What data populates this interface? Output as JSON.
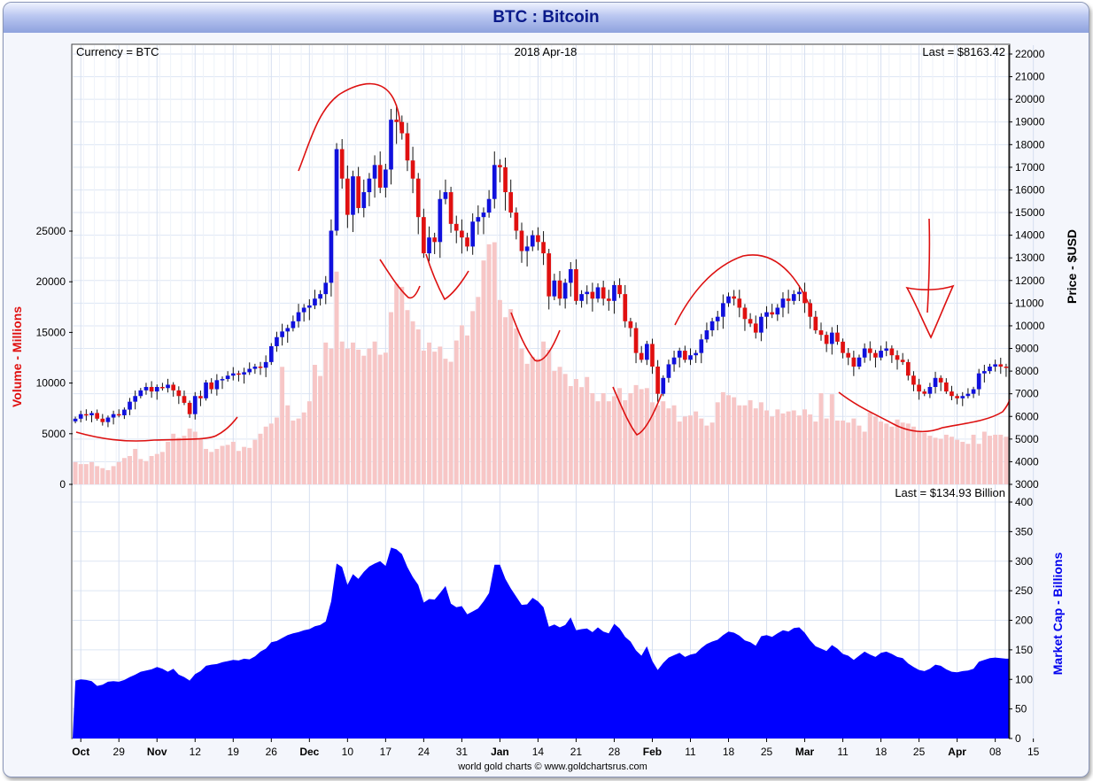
{
  "title": "BTC : Bitcoin",
  "colors": {
    "up": "#1010dd",
    "down": "#e01010",
    "volume": "#f7c6c6",
    "market_cap": "#0000ff",
    "volume_label": "#e01010",
    "market_cap_label": "#0000ee",
    "annotation": "#dd1111"
  },
  "chart_data": [
    {
      "type": "candlestick",
      "header_left": "Currency = BTC",
      "header_center": "2018 Apr-18",
      "header_right": "Last = $8163.42",
      "right_axis_label": "Price - $USD",
      "left_axis_label": "Volume - Millions",
      "price_ticks": [
        3000,
        4000,
        5000,
        6000,
        7000,
        8000,
        9000,
        10000,
        11000,
        12000,
        13000,
        14000,
        15000,
        16000,
        17000,
        18000,
        19000,
        20000,
        21000,
        22000
      ],
      "volume_ticks": [
        0,
        5000,
        10000,
        15000,
        20000,
        25000
      ],
      "x_tick_labels": [
        {
          "label": "Oct",
          "bold": true
        },
        {
          "label": "29",
          "bold": false
        },
        {
          "label": "Nov",
          "bold": true
        },
        {
          "label": "12",
          "bold": false
        },
        {
          "label": "19",
          "bold": false
        },
        {
          "label": "26",
          "bold": false
        },
        {
          "label": "Dec",
          "bold": true
        },
        {
          "label": "10",
          "bold": false
        },
        {
          "label": "17",
          "bold": false
        },
        {
          "label": "24",
          "bold": false
        },
        {
          "label": "31",
          "bold": false
        },
        {
          "label": "Jan",
          "bold": true
        },
        {
          "label": "14",
          "bold": false
        },
        {
          "label": "21",
          "bold": false
        },
        {
          "label": "28",
          "bold": false
        },
        {
          "label": "Feb",
          "bold": true
        },
        {
          "label": "11",
          "bold": false
        },
        {
          "label": "18",
          "bold": false
        },
        {
          "label": "25",
          "bold": false
        },
        {
          "label": "Mar",
          "bold": true
        },
        {
          "label": "11",
          "bold": false
        },
        {
          "label": "18",
          "bold": false
        },
        {
          "label": "25",
          "bold": false
        },
        {
          "label": "Apr",
          "bold": true
        },
        {
          "label": "08",
          "bold": false
        },
        {
          "label": "15",
          "bold": false
        }
      ],
      "x_tick_day_index": [
        1,
        8,
        15,
        22,
        29,
        36,
        43,
        50,
        57,
        64,
        71,
        78,
        85,
        92,
        99,
        106,
        113,
        120,
        127,
        134,
        141,
        148,
        155,
        162,
        169,
        176
      ],
      "price_close_series": [
        5900,
        6100,
        6050,
        6150,
        5900,
        5750,
        5950,
        6100,
        6050,
        6300,
        6650,
        6900,
        7150,
        7300,
        7100,
        7300,
        7250,
        7400,
        7150,
        6900,
        6600,
        6100,
        6900,
        6800,
        7500,
        7200,
        7600,
        7650,
        7800,
        7900,
        7850,
        7950,
        8100,
        8200,
        8150,
        8400,
        9100,
        9500,
        9750,
        9900,
        10200,
        10600,
        10800,
        10900,
        11200,
        11400,
        11900,
        14200,
        17800,
        16500,
        14900,
        16600,
        15200,
        15900,
        16500,
        17100,
        16100,
        16900,
        19100,
        19000,
        18500,
        17300,
        16500,
        14800,
        13200,
        13900,
        13700,
        15600,
        15900,
        14500,
        14200,
        13900,
        13500,
        14600,
        14800,
        15000,
        15600,
        17100,
        17000,
        15900,
        15000,
        14200,
        13300,
        13500,
        14000,
        13700,
        13200,
        11300,
        12000,
        11200,
        11900,
        12500,
        11100,
        11400,
        11500,
        11200,
        11700,
        11200,
        11100,
        11800,
        11400,
        10200,
        9900,
        8800,
        8500,
        9200,
        8200,
        7000,
        7700,
        8300,
        8600,
        8900,
        8500,
        8700,
        8800,
        9400,
        9800,
        10200,
        10400,
        11000,
        11300,
        11200,
        10800,
        10300,
        10100,
        9700,
        10400,
        10600,
        10500,
        10800,
        11200,
        11100,
        11400,
        11500,
        11000,
        10400,
        9800,
        9600,
        9200,
        9700,
        9300,
        8800,
        8600,
        8200,
        8600,
        9000,
        8800,
        8600,
        8900,
        9000,
        8700,
        8500,
        8400,
        7800,
        7400,
        7100,
        7000,
        7300,
        7700,
        7500,
        7100,
        6900,
        6800,
        6900,
        7000,
        7200,
        7900,
        8000,
        8200,
        8300,
        8200,
        8163
      ],
      "volume_series": [
        2200,
        2000,
        2000,
        2200,
        1800,
        1600,
        1400,
        1800,
        2200,
        2600,
        2800,
        3500,
        2500,
        2300,
        2800,
        3000,
        3200,
        4200,
        5000,
        4600,
        4800,
        5500,
        5200,
        4500,
        3500,
        3200,
        3500,
        3800,
        3900,
        4200,
        3300,
        3700,
        3600,
        4400,
        5000,
        5700,
        6000,
        6600,
        11600,
        7800,
        6300,
        6500,
        7100,
        8200,
        11800,
        10700,
        14000,
        13400,
        21000,
        14100,
        13400,
        14000,
        13300,
        12700,
        13400,
        14100,
        12800,
        13000,
        17000,
        19800,
        19500,
        17200,
        16100,
        15300,
        13200,
        14000,
        13100,
        13600,
        12400,
        12100,
        14200,
        15700,
        14700,
        17100,
        18500,
        22100,
        23700,
        23900,
        18200,
        16500,
        17300,
        15400,
        13400,
        11900,
        12600,
        12400,
        14100,
        13300,
        11200,
        11600,
        10900,
        9700,
        10400,
        9600,
        10600,
        9000,
        8200,
        9000,
        8200,
        8700,
        9500,
        8300,
        9000,
        9800,
        9400,
        9500,
        8100,
        7800,
        8200,
        7500,
        7800,
        6200,
        6700,
        6800,
        7200,
        6500,
        5800,
        6100,
        8100,
        9100,
        8800,
        8600,
        7800,
        7800,
        8300,
        7500,
        8100,
        7300,
        6700,
        7400,
        7000,
        7200,
        7300,
        6800,
        7400,
        6900,
        6200,
        9000,
        6500,
        8900,
        6300,
        6300,
        6100,
        6500,
        5800,
        5200,
        7100,
        6700,
        6200,
        6000,
        5700,
        6400,
        6100,
        6000,
        5700,
        5300,
        5100,
        4800,
        4600,
        4500,
        4900,
        4700,
        4400,
        4200,
        4000,
        4900,
        4000,
        5200,
        4800,
        4900,
        4900,
        4700
      ]
    },
    {
      "type": "area",
      "header_right": "Last = $134.93 Billion",
      "right_axis_label": "Market Cap - Billions",
      "market_cap_ticks": [
        0,
        50,
        100,
        150,
        200,
        250,
        300,
        350,
        400
      ],
      "market_cap_series": [
        98,
        100,
        99,
        97,
        89,
        91,
        96,
        97,
        96,
        99,
        104,
        108,
        113,
        115,
        117,
        121,
        118,
        113,
        118,
        108,
        104,
        98,
        109,
        114,
        123,
        125,
        126,
        129,
        131,
        133,
        132,
        135,
        134,
        139,
        147,
        152,
        163,
        165,
        170,
        175,
        178,
        180,
        183,
        185,
        190,
        192,
        198,
        232,
        296,
        290,
        260,
        278,
        270,
        282,
        291,
        296,
        300,
        292,
        323,
        320,
        312,
        290,
        273,
        260,
        230,
        236,
        235,
        246,
        258,
        228,
        222,
        224,
        210,
        215,
        220,
        232,
        246,
        294,
        294,
        270,
        254,
        240,
        226,
        227,
        238,
        232,
        222,
        189,
        193,
        188,
        192,
        205,
        183,
        185,
        186,
        180,
        188,
        181,
        178,
        194,
        186,
        172,
        164,
        149,
        140,
        156,
        131,
        116,
        128,
        137,
        141,
        145,
        138,
        142,
        144,
        153,
        160,
        164,
        167,
        175,
        181,
        179,
        174,
        166,
        163,
        157,
        173,
        175,
        172,
        178,
        183,
        181,
        187,
        188,
        179,
        166,
        156,
        152,
        148,
        158,
        152,
        143,
        140,
        133,
        140,
        147,
        142,
        138,
        145,
        147,
        143,
        138,
        136,
        127,
        121,
        116,
        114,
        118,
        125,
        123,
        117,
        113,
        112,
        114,
        115,
        118,
        130,
        133,
        136,
        137,
        136,
        135
      ]
    }
  ],
  "credit": "world gold charts © www.goldchartsrus.com"
}
